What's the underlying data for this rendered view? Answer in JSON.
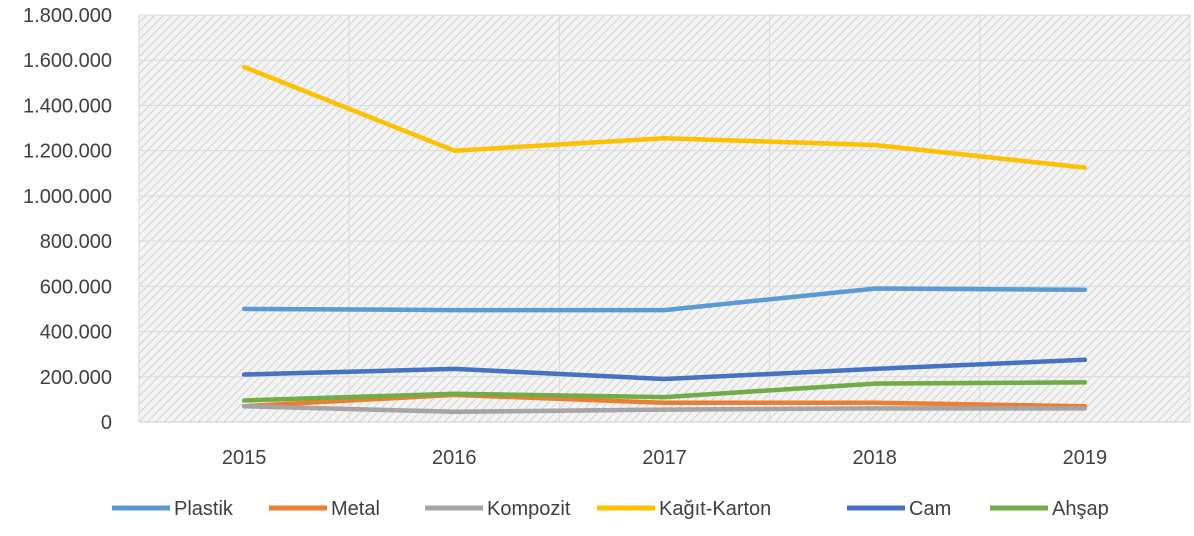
{
  "chart_data": {
    "type": "line",
    "title": "",
    "xlabel": "",
    "ylabel": "",
    "categories": [
      "2015",
      "2016",
      "2017",
      "2018",
      "2019"
    ],
    "ylim": [
      0,
      1800000
    ],
    "y_ticks": [
      0,
      200000,
      400000,
      600000,
      800000,
      1000000,
      1200000,
      1400000,
      1600000,
      1800000
    ],
    "y_tick_labels": [
      "0",
      "200.000",
      "400.000",
      "600.000",
      "800.000",
      "1.000.000",
      "1.200.000",
      "1.400.000",
      "1.600.000",
      "1.800.000"
    ],
    "grid": true,
    "legend_position": "bottom",
    "series": [
      {
        "name": "Plastik",
        "color": "#5b9bd5",
        "values": [
          500000,
          495000,
          495000,
          590000,
          585000
        ]
      },
      {
        "name": "Metal",
        "color": "#ed7d31",
        "values": [
          70000,
          120000,
          85000,
          85000,
          70000
        ]
      },
      {
        "name": "Kompozit",
        "color": "#a5a5a5",
        "values": [
          70000,
          45000,
          55000,
          60000,
          60000
        ]
      },
      {
        "name": "Kağıt-Karton",
        "color": "#ffc000",
        "values": [
          1570000,
          1200000,
          1255000,
          1225000,
          1125000
        ]
      },
      {
        "name": "Cam",
        "color": "#4472c4",
        "values": [
          210000,
          235000,
          190000,
          235000,
          275000
        ]
      },
      {
        "name": "Ahşap",
        "color": "#70ad47",
        "values": [
          95000,
          125000,
          110000,
          170000,
          175000
        ]
      }
    ]
  }
}
